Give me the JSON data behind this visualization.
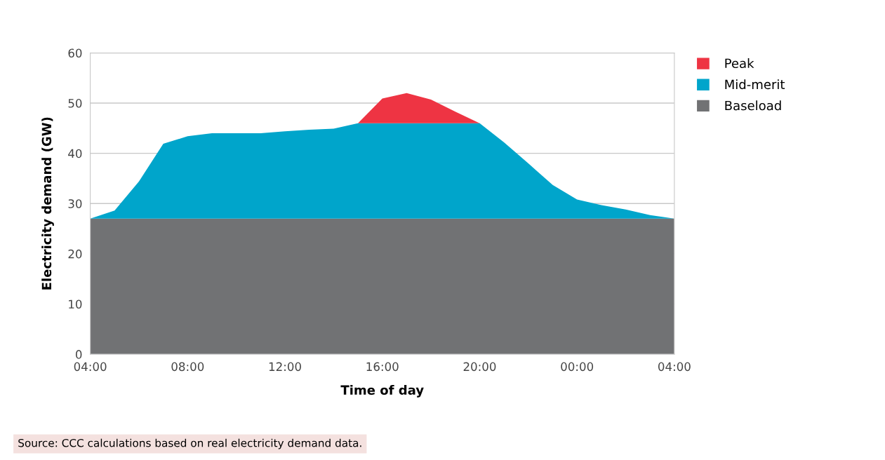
{
  "chart_data": {
    "type": "area",
    "stacked": true,
    "xlabel": "Time of day",
    "ylabel": "Electricity demand (GW)",
    "categories": [
      "04:00",
      null,
      null,
      null,
      "08:00",
      null,
      null,
      null,
      "12:00",
      null,
      null,
      null,
      "16:00",
      null,
      null,
      null,
      "20:00",
      null,
      null,
      null,
      "00:00",
      null,
      null,
      null,
      "04:00"
    ],
    "series": [
      {
        "name": "Baseload",
        "color": "#717274",
        "values": [
          27,
          27,
          27,
          27,
          27,
          27,
          27,
          27,
          27,
          27,
          27,
          27,
          27,
          27,
          27,
          27,
          27,
          27,
          27,
          27,
          27,
          27,
          27,
          27,
          27
        ]
      },
      {
        "name": "Mid-merit",
        "color": "#00a5cb",
        "values": [
          0,
          1.6,
          7.4,
          14.9,
          16.4,
          17,
          17,
          17,
          17.4,
          17.7,
          17.9,
          19,
          19,
          19,
          19,
          19,
          19,
          15.2,
          11,
          6.7,
          3.8,
          2.7,
          1.8,
          0.7,
          0
        ]
      },
      {
        "name": "Peak",
        "color": "#ee3443",
        "values": [
          0,
          0,
          0,
          0,
          0,
          0,
          0,
          0,
          0,
          0,
          0,
          0,
          4.9,
          6,
          4.7,
          2.3,
          0,
          0,
          0,
          0,
          0,
          0,
          0,
          0,
          0
        ]
      }
    ],
    "ylim": [
      0,
      60
    ],
    "yticks": [
      0,
      10,
      20,
      30,
      40,
      50,
      60
    ],
    "grid": "y",
    "legend": "top right",
    "annotations": [
      "Source: CCC calculations based on real electricity demand data."
    ]
  }
}
